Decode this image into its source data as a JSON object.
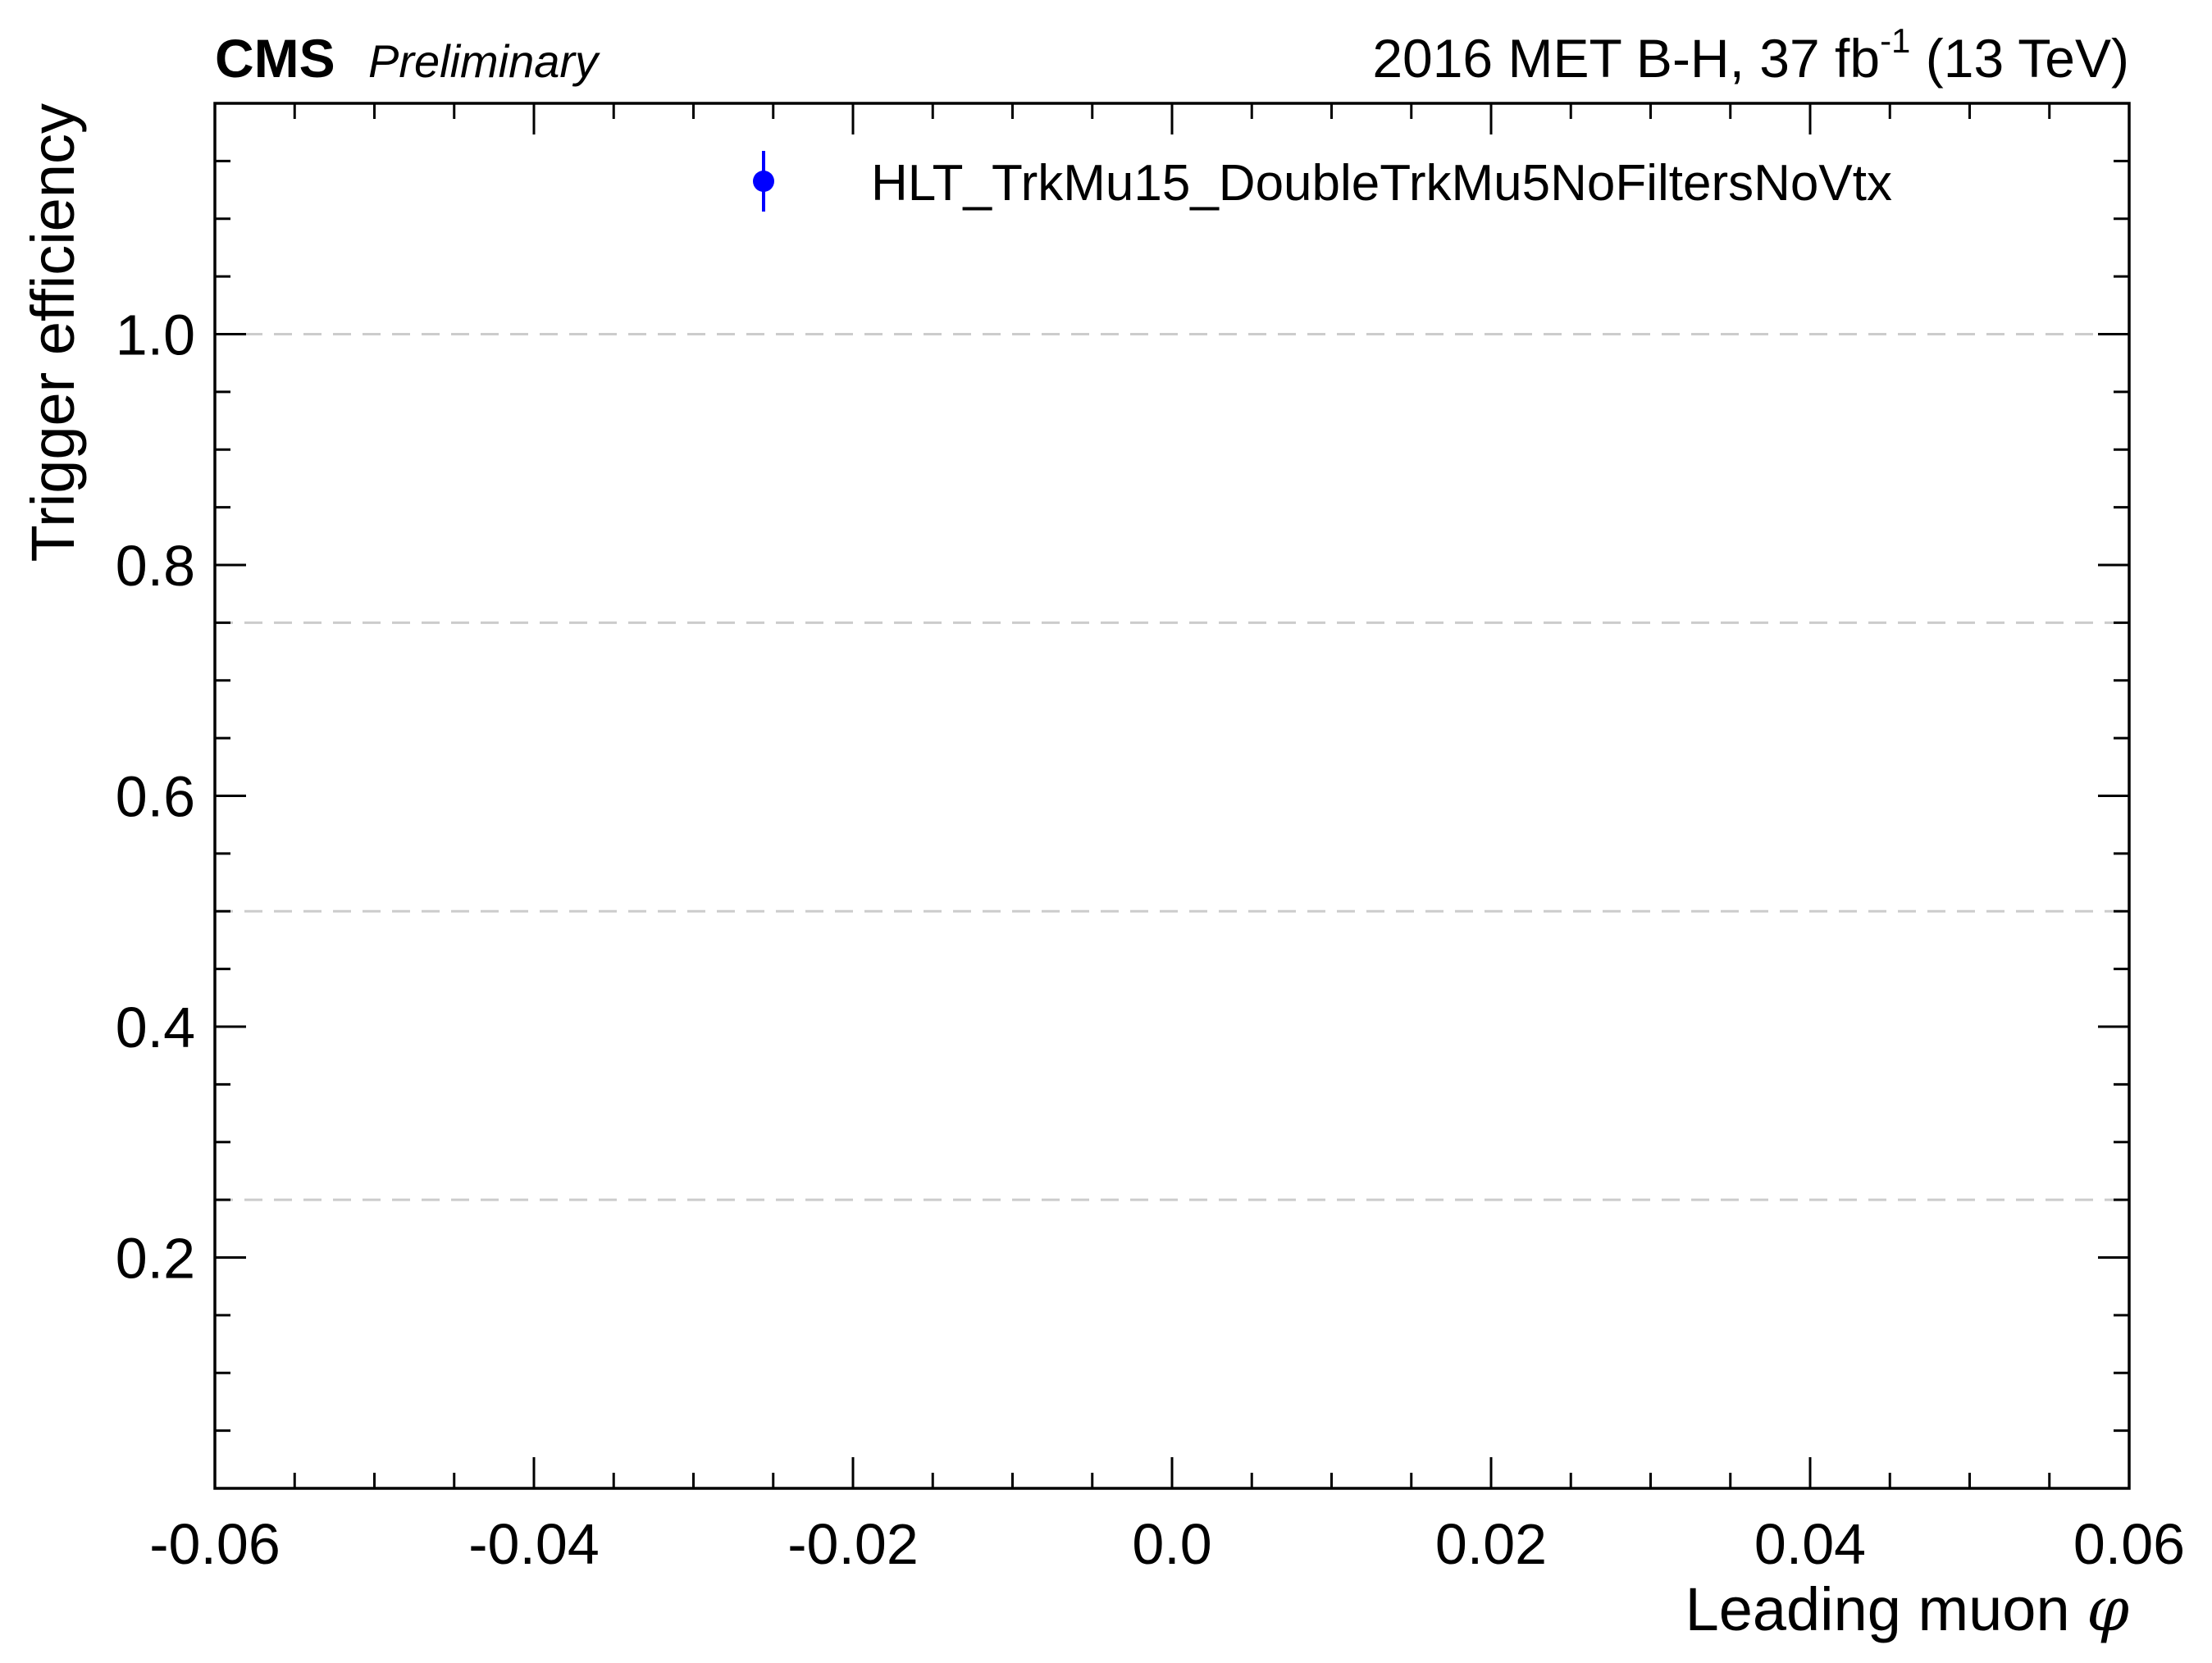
{
  "header": {
    "cms_label": "CMS",
    "preliminary_label": "Preliminary",
    "lumi_prefix": "2016 MET B-H, 37 fb",
    "lumi_superscript": "-1",
    "lumi_suffix": " (13 TeV)"
  },
  "chart_data": {
    "type": "scatter",
    "title": "",
    "xlabel_text": "Leading muon ",
    "xlabel_symbol": "φ",
    "ylabel": "Trigger efficiency",
    "xlim": [
      -0.06,
      0.06
    ],
    "ylim": [
      0.0,
      1.2
    ],
    "x_major_ticks": [
      -0.06,
      -0.04,
      -0.02,
      0.0,
      0.02,
      0.04,
      0.06
    ],
    "x_tick_labels": [
      "-0.06",
      "-0.04",
      "-0.02",
      "0.0",
      "0.02",
      "0.04",
      "0.06"
    ],
    "x_minor_step": 0.005,
    "y_major_ticks": [
      0.2,
      0.4,
      0.6,
      0.8,
      1.0
    ],
    "y_tick_labels": [
      "0.2",
      "0.4",
      "0.6",
      "0.8",
      "1.0"
    ],
    "y_minor_step": 0.05,
    "grid_dashed_y": [
      0.25,
      0.5,
      0.75,
      1.0
    ],
    "legend_position": "top-right",
    "series": [
      {
        "name": "HLT_TrkMu15_DoubleTrkMu5NoFiltersNoVtx",
        "color": "#0000ff",
        "marker": "circle-with-errorbar",
        "points": []
      }
    ]
  },
  "colors": {
    "grid": "#cccccc",
    "axes": "#000000",
    "series": "#0000ff"
  }
}
